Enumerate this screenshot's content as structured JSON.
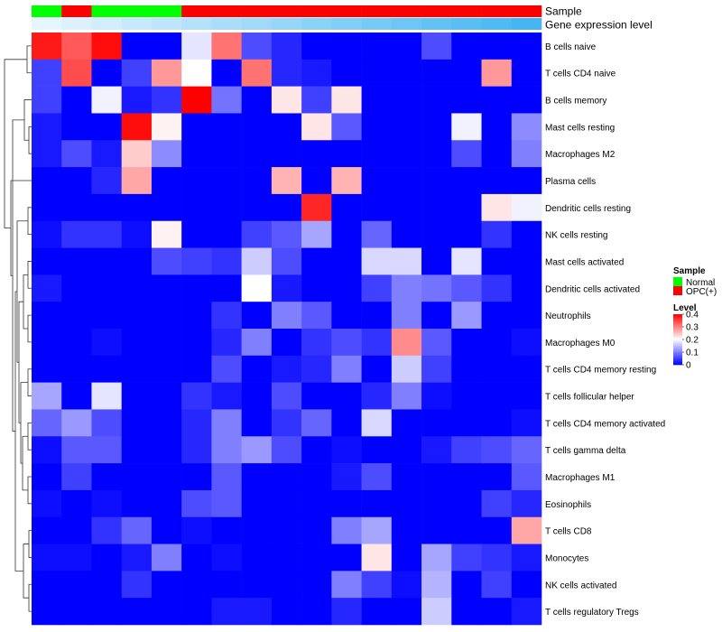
{
  "chart_data": {
    "type": "heatmap",
    "annotation_tracks": [
      {
        "name": "Sample",
        "values": [
          "Normal",
          "OPC(+)",
          "Normal",
          "Normal",
          "Normal",
          "OPC(+)",
          "OPC(+)",
          "OPC(+)",
          "OPC(+)",
          "OPC(+)",
          "OPC(+)",
          "OPC(+)",
          "OPC(+)",
          "OPC(+)",
          "OPC(+)",
          "OPC(+)",
          "OPC(+)"
        ]
      },
      {
        "name": "Gene expression level",
        "values": [
          0.02,
          0.04,
          0.06,
          0.08,
          0.1,
          0.12,
          0.14,
          0.16,
          0.18,
          0.2,
          0.22,
          0.24,
          0.26,
          0.28,
          0.3,
          0.32,
          0.34
        ]
      }
    ],
    "rows": [
      "B cells naive",
      "T cells CD4 naive",
      "B cells memory",
      "Mast cells resting",
      "Macrophages M2",
      "Plasma cells",
      "Dendritic cells resting",
      "NK cells resting",
      "Mast cells activated",
      "Dendritic cells activated",
      "Neutrophils",
      "Macrophages M0",
      "T cells CD4 memory resting",
      "T cells follicular helper",
      "T cells CD4 memory activated",
      "T cells gamma delta",
      "Macrophages M1",
      "Eosinophils",
      "T cells CD8",
      "Monocytes",
      "NK cells activated",
      "T cells regulatory  Tregs"
    ],
    "values": [
      [
        0.38,
        0.33,
        0.39,
        0,
        0,
        0.18,
        0.31,
        0.06,
        0.03,
        0,
        0,
        0,
        0,
        0.06,
        0,
        0,
        0
      ],
      [
        0.05,
        0.34,
        0,
        0.05,
        0.28,
        0.2,
        0,
        0.31,
        0.03,
        0.02,
        0,
        0,
        0,
        0,
        0,
        0.28,
        0
      ],
      [
        0.05,
        0,
        0.19,
        0.02,
        0.04,
        0.4,
        0.09,
        0,
        0.22,
        0.05,
        0.22,
        0,
        0,
        0,
        0,
        0,
        0
      ],
      [
        0.02,
        0,
        0,
        0.39,
        0.21,
        0,
        0,
        0,
        0,
        0.22,
        0.07,
        0,
        0,
        0,
        0.19,
        0,
        0.11
      ],
      [
        0.02,
        0.06,
        0.02,
        0.24,
        0.11,
        0,
        0,
        0,
        0,
        0,
        0,
        0,
        0,
        0,
        0.06,
        0,
        0.1
      ],
      [
        0,
        0,
        0.03,
        0.27,
        0,
        0,
        0,
        0,
        0.26,
        0,
        0.26,
        0,
        0,
        0,
        0,
        0,
        0
      ],
      [
        0,
        0,
        0,
        0,
        0,
        0,
        0,
        0,
        0,
        0.37,
        0,
        0,
        0,
        0,
        0,
        0.22,
        0.19
      ],
      [
        0.01,
        0.04,
        0.04,
        0.01,
        0.21,
        0,
        0,
        0.05,
        0.07,
        0.13,
        0,
        0.08,
        0,
        0,
        0,
        0.04,
        0
      ],
      [
        0,
        0,
        0,
        0,
        0.06,
        0.05,
        0.04,
        0.16,
        0.06,
        0,
        0,
        0.17,
        0.17,
        0,
        0.18,
        0,
        0
      ],
      [
        0.02,
        0,
        0,
        0,
        0,
        0,
        0,
        0.2,
        0.02,
        0,
        0,
        0.05,
        0.1,
        0.09,
        0.07,
        0.04,
        0
      ],
      [
        0,
        0,
        0,
        0,
        0,
        0,
        0.04,
        0,
        0.1,
        0.07,
        0,
        0,
        0.1,
        0,
        0.12,
        0,
        0
      ],
      [
        0,
        0,
        0.01,
        0,
        0,
        0,
        0.03,
        0.1,
        0,
        0.04,
        0.06,
        0.04,
        0.29,
        0.07,
        0,
        0,
        0.01
      ],
      [
        0,
        0,
        0,
        0,
        0,
        0,
        0.06,
        0,
        0.02,
        0.03,
        0.1,
        0,
        0.16,
        0.05,
        0,
        0,
        0
      ],
      [
        0.13,
        0,
        0.18,
        0,
        0,
        0.04,
        0.02,
        0,
        0.06,
        0,
        0,
        0.03,
        0.1,
        0.01,
        0,
        0,
        0
      ],
      [
        0.08,
        0.12,
        0.06,
        0,
        0,
        0.03,
        0.1,
        0,
        0.04,
        0.08,
        0,
        0.17,
        0,
        0,
        0,
        0,
        0.01
      ],
      [
        0.01,
        0.07,
        0.07,
        0,
        0,
        0.03,
        0.1,
        0.12,
        0.06,
        0,
        0.01,
        0,
        0,
        0.02,
        0.05,
        0.06,
        0.08
      ],
      [
        0,
        0.05,
        0,
        0,
        0,
        0,
        0.07,
        0,
        0,
        0,
        0.02,
        0.06,
        0,
        0,
        0,
        0,
        0.07
      ],
      [
        0.01,
        0,
        0.01,
        0,
        0,
        0.06,
        0.07,
        0,
        0,
        0,
        0,
        0,
        0,
        0,
        0,
        0.05,
        0.03
      ],
      [
        0,
        0,
        0.04,
        0.08,
        0,
        0.01,
        0,
        0,
        0,
        0,
        0.1,
        0.13,
        0,
        0,
        0,
        0,
        0.27
      ],
      [
        0.01,
        0.01,
        0,
        0.02,
        0.1,
        0,
        0.01,
        0,
        0,
        0,
        0,
        0.22,
        0,
        0.13,
        0.05,
        0.04,
        0.02
      ],
      [
        0,
        0,
        0,
        0.04,
        0,
        0,
        0,
        0,
        0,
        0,
        0.1,
        0.05,
        0.01,
        0.14,
        0,
        0.05,
        0
      ],
      [
        0,
        0,
        0,
        0,
        0,
        0,
        0.02,
        0.02,
        0,
        0,
        0.03,
        0,
        0,
        0.16,
        0,
        0,
        0.02
      ]
    ],
    "color_scale": {
      "min": 0,
      "max": 0.4,
      "low": "#0000ff",
      "mid": "#ffffff",
      "high": "#ff0000",
      "midpoint": 0.2
    },
    "legend": {
      "sample": {
        "title": "Sample",
        "entries": [
          {
            "label": "Normal",
            "color": "#00ff00"
          },
          {
            "label": "OPC(+)",
            "color": "#ff0000"
          }
        ]
      },
      "level": {
        "title": "Level",
        "ticks": [
          0.4,
          0.3,
          0.2,
          0.1,
          0
        ]
      }
    },
    "gene_expression_colors": {
      "low": "#e6f5ff",
      "high": "#45b6f2"
    },
    "row_dendrogram": true,
    "legend_placement": "right"
  }
}
